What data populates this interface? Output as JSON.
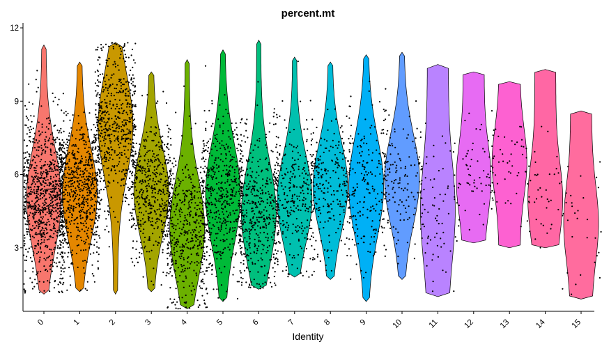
{
  "chart_data": {
    "type": "violin",
    "title": "percent.mt",
    "xlabel": "Identity",
    "ylabel": "",
    "ylim": [
      0.4,
      12.2
    ],
    "yticks": [
      3,
      6,
      9,
      12
    ],
    "grid": false,
    "legend": "none",
    "series": [
      {
        "name": "0",
        "color": "#F8766D",
        "min": 1.1,
        "max": 11.3,
        "median": 5.0,
        "points": 900
      },
      {
        "name": "1",
        "color": "#E58700",
        "min": 1.2,
        "max": 10.6,
        "median": 5.2,
        "points": 700
      },
      {
        "name": "2",
        "color": "#C99800",
        "min": 1.1,
        "max": 11.4,
        "median": 8.0,
        "points": 600
      },
      {
        "name": "3",
        "color": "#A3A500",
        "min": 1.2,
        "max": 10.2,
        "median": 5.3,
        "points": 500
      },
      {
        "name": "4",
        "color": "#6BB100",
        "min": 0.5,
        "max": 10.7,
        "median": 3.8,
        "points": 500
      },
      {
        "name": "5",
        "color": "#00BA38",
        "min": 0.8,
        "max": 11.1,
        "median": 5.2,
        "points": 500
      },
      {
        "name": "6",
        "color": "#00BF7D",
        "min": 1.3,
        "max": 11.5,
        "median": 4.4,
        "points": 450
      },
      {
        "name": "7",
        "color": "#00C0AF",
        "min": 1.8,
        "max": 10.8,
        "median": 5.0,
        "points": 300
      },
      {
        "name": "8",
        "color": "#00BCD8",
        "min": 1.7,
        "max": 10.6,
        "median": 5.5,
        "points": 250
      },
      {
        "name": "9",
        "color": "#00B0F6",
        "min": 0.8,
        "max": 10.9,
        "median": 5.5,
        "points": 200
      },
      {
        "name": "10",
        "color": "#619CFF",
        "min": 1.7,
        "max": 11.0,
        "median": 5.8,
        "points": 150
      },
      {
        "name": "11",
        "color": "#B983FF",
        "min": 1.0,
        "max": 10.5,
        "median": 4.5,
        "points": 70
      },
      {
        "name": "12",
        "color": "#E76BF3",
        "min": 3.2,
        "max": 10.2,
        "median": 5.8,
        "points": 60
      },
      {
        "name": "13",
        "color": "#FD61D1",
        "min": 3.0,
        "max": 9.8,
        "median": 6.5,
        "points": 50
      },
      {
        "name": "14",
        "color": "#FF67A4",
        "min": 3.0,
        "max": 10.3,
        "median": 5.0,
        "points": 40
      },
      {
        "name": "15",
        "color": "#FF6C9E",
        "min": 0.9,
        "max": 8.6,
        "median": 4.0,
        "points": 30
      }
    ]
  }
}
